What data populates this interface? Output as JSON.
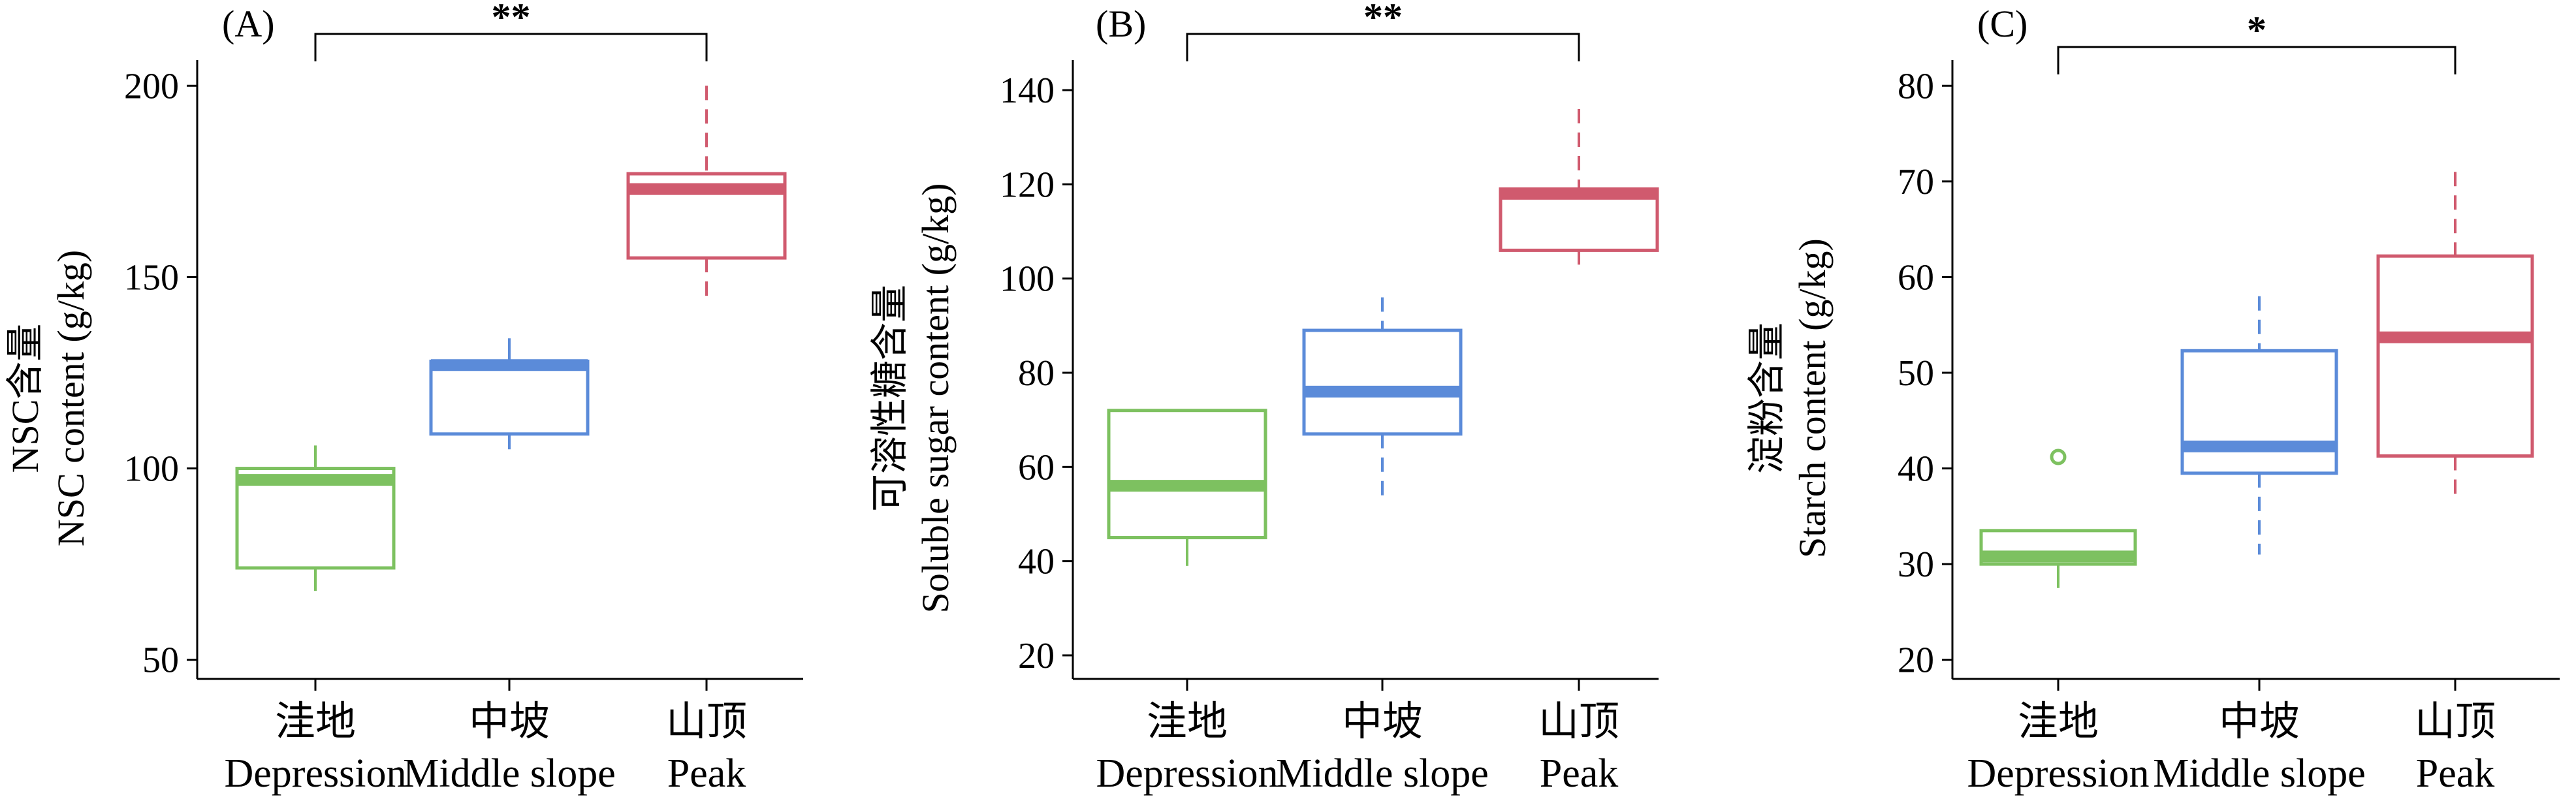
{
  "chart_data": [
    {
      "type": "box",
      "panel_label": "(A)",
      "ylabel_cn": "NSC含量",
      "ylabel_en": "NSC content (g/kg)",
      "yticks": [
        50,
        100,
        150,
        200
      ],
      "ylim": [
        45,
        205
      ],
      "categories": [
        {
          "cn": "洼地",
          "en": "Depression",
          "color": "#7dc160",
          "whisker_low": 68,
          "q1": 74,
          "median": 97,
          "q3": 100,
          "whisker_high": 106,
          "outliers": [],
          "whisker_style": "solid"
        },
        {
          "cn": "中坡",
          "en": "Middle slope",
          "color": "#5b8bd9",
          "whisker_low": 105,
          "q1": 109,
          "median": 127,
          "q3": 128,
          "whisker_high": 134,
          "outliers": [],
          "whisker_style": "solid"
        },
        {
          "cn": "山顶",
          "en": "Peak",
          "color": "#d05a6e",
          "whisker_low": 143,
          "q1": 155,
          "median": 173,
          "q3": 177,
          "whisker_high": 200,
          "outliers": [],
          "whisker_style": "dashed"
        }
      ],
      "significance": {
        "from": 0,
        "to": 2,
        "label": "**"
      }
    },
    {
      "type": "box",
      "panel_label": "(B)",
      "ylabel_cn": "可溶性糖含量",
      "ylabel_en": "Soluble sugar content (g/kg)",
      "yticks": [
        20,
        40,
        60,
        80,
        100,
        120,
        140
      ],
      "ylim": [
        15,
        145
      ],
      "categories": [
        {
          "cn": "洼地",
          "en": "Depression",
          "color": "#7dc160",
          "whisker_low": 39,
          "q1": 45,
          "median": 56,
          "q3": 72,
          "whisker_high": 72,
          "outliers": [],
          "whisker_style": "solid"
        },
        {
          "cn": "中坡",
          "en": "Middle slope",
          "color": "#5b8bd9",
          "whisker_low": 53,
          "q1": 67,
          "median": 76,
          "q3": 89,
          "whisker_high": 96,
          "outliers": [],
          "whisker_style": "dashed"
        },
        {
          "cn": "山顶",
          "en": "Peak",
          "color": "#d05a6e",
          "whisker_low": 102,
          "q1": 106,
          "median": 118,
          "q3": 119,
          "whisker_high": 136,
          "outliers": [],
          "whisker_style": "dashed"
        }
      ],
      "significance": {
        "from": 0,
        "to": 2,
        "label": "**"
      }
    },
    {
      "type": "box",
      "panel_label": "(C)",
      "ylabel_cn": "淀粉含量",
      "ylabel_en": "Starch content (g/kg)",
      "yticks": [
        20,
        30,
        40,
        50,
        60,
        70,
        80
      ],
      "ylim": [
        18,
        82
      ],
      "categories": [
        {
          "cn": "洼地",
          "en": "Depression",
          "color": "#7dc160",
          "whisker_low": 27.5,
          "q1": 30,
          "median": 30.8,
          "q3": 33.5,
          "whisker_high": 33.5,
          "outliers": [
            41.2
          ],
          "whisker_style": "solid"
        },
        {
          "cn": "中坡",
          "en": "Middle slope",
          "color": "#5b8bd9",
          "whisker_low": 31,
          "q1": 39.5,
          "median": 42.3,
          "q3": 52.3,
          "whisker_high": 58,
          "outliers": [],
          "whisker_style": "dashed"
        },
        {
          "cn": "山顶",
          "en": "Peak",
          "color": "#d05a6e",
          "whisker_low": 37,
          "q1": 41.3,
          "median": 53.7,
          "q3": 62.2,
          "whisker_high": 71,
          "outliers": [],
          "whisker_style": "dashed"
        }
      ],
      "significance": {
        "from": 0,
        "to": 2,
        "label": "*"
      }
    }
  ]
}
